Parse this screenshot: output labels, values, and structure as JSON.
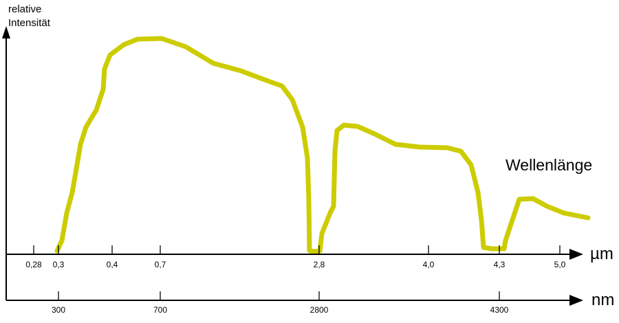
{
  "y_axis_label": [
    "relative",
    "Intensität"
  ],
  "curve_label": "Wellenlänge",
  "curve_color": "#cccc00",
  "axis_um": {
    "unit": "µm",
    "ticks": [
      "0,28",
      "0,3",
      "0,4",
      "0,7",
      "2,8",
      "4,0",
      "4,3",
      "5,0"
    ]
  },
  "axis_nm": {
    "unit": "nm",
    "ticks": [
      "300",
      "700",
      "2800",
      "4300"
    ]
  }
}
